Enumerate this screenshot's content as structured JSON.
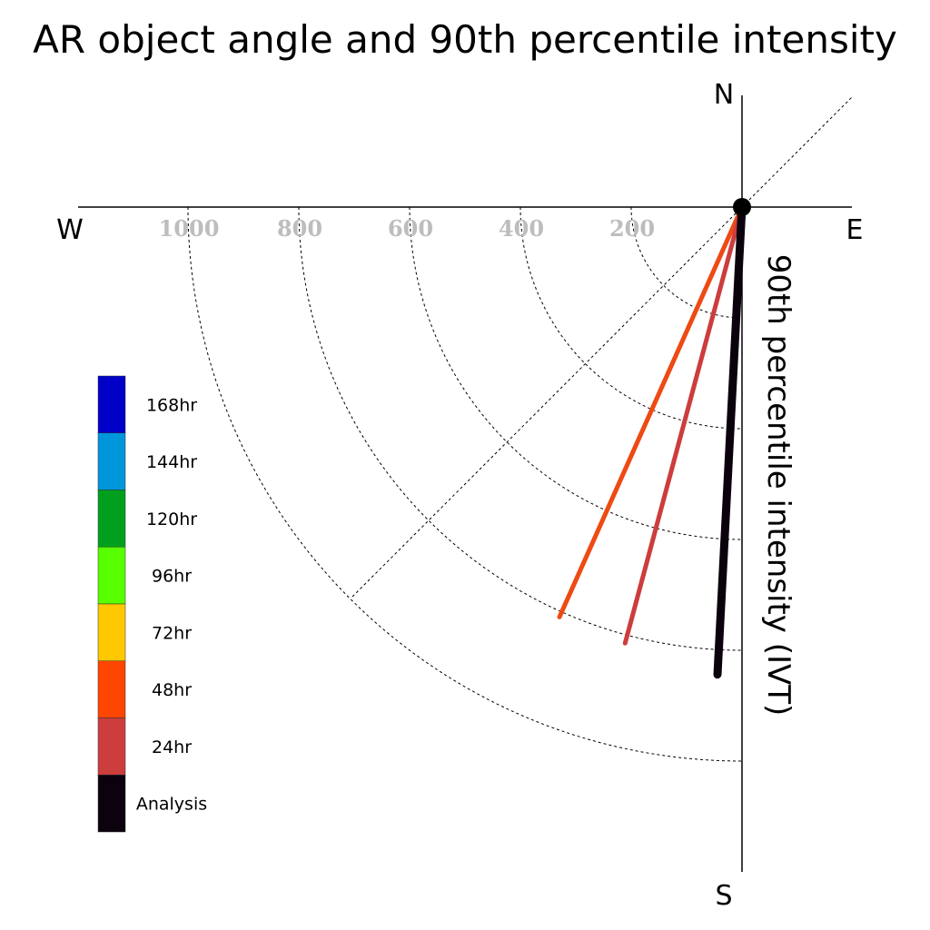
{
  "chart_data": {
    "type": "polar",
    "title": "AR object angle and 90th percentile intensity",
    "radial_axis_label": "90th percentile intensity (IVT)",
    "compass": {
      "north": "N",
      "south": "S",
      "west": "W",
      "east": "E"
    },
    "rings": [
      200,
      400,
      600,
      800,
      1000
    ],
    "ring_labels": [
      "1000",
      "800",
      "600",
      "400",
      "200"
    ],
    "series": [
      {
        "name": "Analysis",
        "angle_deg": 183,
        "intensity": 845,
        "color": "#0c020e"
      },
      {
        "name": "24hr",
        "angle_deg": 195,
        "intensity": 815,
        "color": "#cc3d3d"
      },
      {
        "name": "48hr",
        "angle_deg": 204,
        "intensity": 810,
        "color": "#ee4a14"
      }
    ],
    "legend": [
      {
        "label": "168hr",
        "color": "#0000c8"
      },
      {
        "label": "144hr",
        "color": "#0096dc"
      },
      {
        "label": "120hr",
        "color": "#00a01e"
      },
      {
        "label": "96hr",
        "color": "#58ff00"
      },
      {
        "label": "72hr",
        "color": "#ffc800"
      },
      {
        "label": "48hr",
        "color": "#ff4600"
      },
      {
        "label": "24hr",
        "color": "#cc3d3d"
      },
      {
        "label": "Analysis",
        "color": "#0c020e"
      }
    ]
  }
}
